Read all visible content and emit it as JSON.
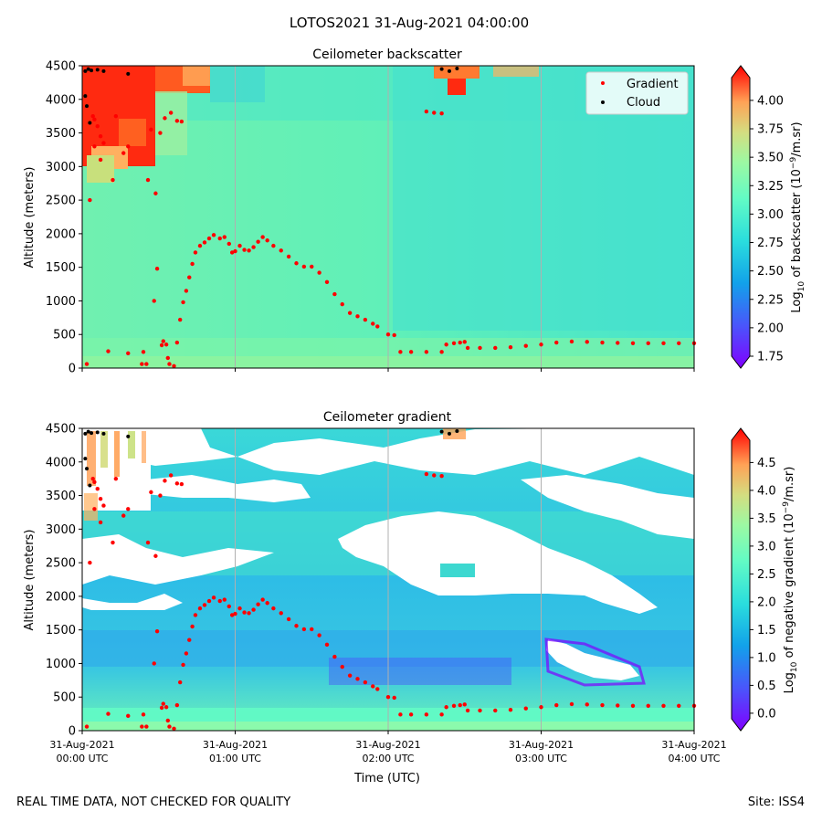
{
  "suptitle": "LOTOS2021 31-Aug-2021 04:00:00",
  "footer": {
    "left": "REAL TIME DATA, NOT CHECKED FOR QUALITY",
    "right": "Site: ISS4"
  },
  "colors": {
    "gradient_marker": "#ff0000",
    "cloud_marker": "#000000",
    "background_cyan": "#3fe0d0",
    "background_green": "#6cf5b0"
  },
  "chart_data": [
    {
      "type": "heatmap",
      "title": "Ceilometer backscatter",
      "xlabel": "",
      "ylabel": "Altitude (meters)",
      "xlim": [
        0,
        4
      ],
      "ylim": [
        0,
        4500
      ],
      "yticks": [
        "0",
        "500",
        "1000",
        "1500",
        "2000",
        "2500",
        "3000",
        "3500",
        "4000",
        "4500"
      ],
      "ytick_values": [
        0,
        500,
        1000,
        1500,
        2000,
        2500,
        3000,
        3500,
        4000,
        4500
      ],
      "colorbar": {
        "label": "Log10 of backscatter (10^-9/m.sr)",
        "label_parts": [
          "Log",
          "10",
          " of backscatter (10",
          "−9",
          "/m.sr)"
        ],
        "range": [
          1.75,
          4.2
        ],
        "ticks": [
          "1.75",
          "2.00",
          "2.25",
          "2.50",
          "2.75",
          "3.00",
          "3.25",
          "3.50",
          "3.75",
          "4.00"
        ],
        "tick_values": [
          1.75,
          2.0,
          2.25,
          2.5,
          2.75,
          3.0,
          3.25,
          3.5,
          3.75,
          4.0
        ]
      },
      "legend": {
        "position": "top-right",
        "entries": [
          "Gradient",
          "Cloud"
        ]
      }
    },
    {
      "type": "heatmap",
      "title": "Ceilometer gradient",
      "xlabel": "Time (UTC)",
      "ylabel": "Altitude (meters)",
      "xlim": [
        0,
        4
      ],
      "ylim": [
        0,
        4500
      ],
      "yticks": [
        "0",
        "500",
        "1000",
        "1500",
        "2000",
        "2500",
        "3000",
        "3500",
        "4000",
        "4500"
      ],
      "ytick_values": [
        0,
        500,
        1000,
        1500,
        2000,
        2500,
        3000,
        3500,
        4000,
        4500
      ],
      "colorbar": {
        "label": "Log10 of negative gradient (10^-9/m.sr)",
        "label_parts": [
          "Log",
          "10",
          " of negative gradient (10",
          "−9",
          "/m.sr)"
        ],
        "range": [
          -0.1,
          4.9
        ],
        "ticks": [
          "0.0",
          "0.5",
          "1.0",
          "1.5",
          "2.0",
          "2.5",
          "3.0",
          "3.5",
          "4.0",
          "4.5"
        ],
        "tick_values": [
          0.0,
          0.5,
          1.0,
          1.5,
          2.0,
          2.5,
          3.0,
          3.5,
          4.0,
          4.5
        ]
      }
    }
  ],
  "x_axis": {
    "tick_values": [
      0,
      1,
      2,
      3,
      4
    ],
    "tick_labels": [
      [
        "31-Aug-2021",
        "00:00 UTC"
      ],
      [
        "31-Aug-2021",
        "01:00 UTC"
      ],
      [
        "31-Aug-2021",
        "02:00 UTC"
      ],
      [
        "31-Aug-2021",
        "03:00 UTC"
      ],
      [
        "31-Aug-2021",
        "04:00 UTC"
      ]
    ]
  },
  "series": {
    "gradient_points": [
      [
        0.03,
        60
      ],
      [
        0.05,
        2500
      ],
      [
        0.07,
        3750
      ],
      [
        0.08,
        3300
      ],
      [
        0.12,
        3100
      ],
      [
        0.17,
        250
      ],
      [
        0.27,
        3200
      ],
      [
        0.3,
        220
      ],
      [
        0.39,
        60
      ],
      [
        0.4,
        240
      ],
      [
        0.42,
        60
      ],
      [
        0.43,
        2800
      ],
      [
        0.45,
        3550
      ],
      [
        0.47,
        1000
      ],
      [
        0.49,
        1480
      ],
      [
        0.51,
        3500
      ],
      [
        0.52,
        340
      ],
      [
        0.53,
        400
      ],
      [
        0.55,
        350
      ],
      [
        0.56,
        150
      ],
      [
        0.57,
        60
      ],
      [
        0.6,
        30
      ],
      [
        0.62,
        380
      ],
      [
        0.64,
        720
      ],
      [
        0.66,
        980
      ],
      [
        0.68,
        1150
      ],
      [
        0.7,
        1350
      ],
      [
        0.72,
        1550
      ],
      [
        0.74,
        1720
      ],
      [
        0.77,
        1820
      ],
      [
        0.8,
        1870
      ],
      [
        0.83,
        1930
      ],
      [
        0.86,
        1980
      ],
      [
        0.9,
        1930
      ],
      [
        0.93,
        1950
      ],
      [
        0.96,
        1850
      ],
      [
        0.98,
        1720
      ],
      [
        1.0,
        1740
      ],
      [
        1.03,
        1820
      ],
      [
        1.06,
        1760
      ],
      [
        1.09,
        1750
      ],
      [
        1.12,
        1800
      ],
      [
        1.15,
        1880
      ],
      [
        1.18,
        1950
      ],
      [
        1.21,
        1900
      ],
      [
        1.25,
        1820
      ],
      [
        1.3,
        1750
      ],
      [
        1.35,
        1660
      ],
      [
        1.4,
        1560
      ],
      [
        1.45,
        1510
      ],
      [
        1.5,
        1510
      ],
      [
        1.55,
        1420
      ],
      [
        1.6,
        1280
      ],
      [
        1.65,
        1100
      ],
      [
        1.7,
        950
      ],
      [
        1.75,
        820
      ],
      [
        1.8,
        770
      ],
      [
        1.85,
        720
      ],
      [
        1.9,
        660
      ],
      [
        1.93,
        620
      ],
      [
        2.0,
        500
      ],
      [
        2.04,
        490
      ],
      [
        2.08,
        240
      ],
      [
        2.15,
        240
      ],
      [
        2.25,
        240
      ],
      [
        2.35,
        240
      ],
      [
        2.38,
        350
      ],
      [
        2.43,
        370
      ],
      [
        2.47,
        380
      ],
      [
        2.5,
        390
      ],
      [
        2.52,
        300
      ],
      [
        2.6,
        300
      ],
      [
        2.7,
        300
      ],
      [
        2.8,
        310
      ],
      [
        2.9,
        330
      ],
      [
        3.0,
        350
      ],
      [
        3.1,
        380
      ],
      [
        3.2,
        395
      ],
      [
        3.3,
        390
      ],
      [
        3.4,
        380
      ],
      [
        3.5,
        375
      ],
      [
        3.6,
        370
      ],
      [
        3.7,
        370
      ],
      [
        3.8,
        370
      ],
      [
        3.9,
        370
      ],
      [
        4.0,
        370
      ]
    ],
    "high_points": [
      [
        0.08,
        3700
      ],
      [
        0.1,
        3600
      ],
      [
        0.12,
        3450
      ],
      [
        0.14,
        3350
      ],
      [
        0.2,
        2800
      ],
      [
        0.22,
        3750
      ],
      [
        0.3,
        3300
      ],
      [
        0.48,
        2600
      ],
      [
        0.54,
        3720
      ],
      [
        0.58,
        3800
      ],
      [
        0.62,
        3680
      ],
      [
        0.65,
        3670
      ],
      [
        2.25,
        3820
      ],
      [
        2.3,
        3800
      ],
      [
        2.35,
        3790
      ]
    ],
    "cloud_points": [
      [
        0.02,
        4420
      ],
      [
        0.04,
        4450
      ],
      [
        0.06,
        4430
      ],
      [
        0.1,
        4440
      ],
      [
        0.14,
        4420
      ],
      [
        0.3,
        4380
      ],
      [
        0.02,
        4050
      ],
      [
        0.03,
        3900
      ],
      [
        0.05,
        3650
      ],
      [
        2.35,
        4450
      ],
      [
        2.4,
        4420
      ],
      [
        2.45,
        4460
      ]
    ]
  }
}
